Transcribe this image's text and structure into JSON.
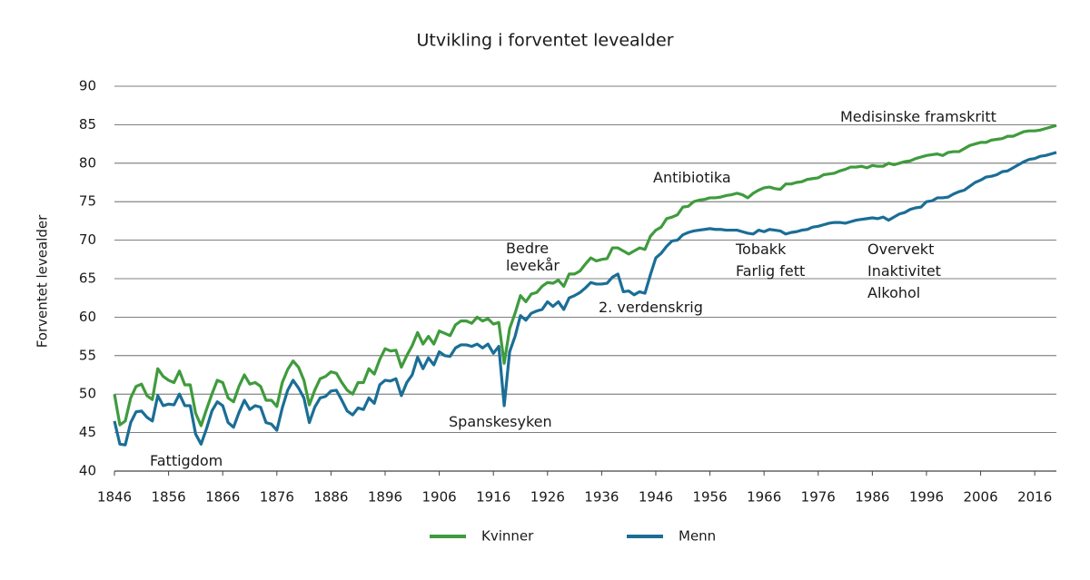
{
  "chart_data": {
    "type": "line",
    "title": "Utvikling i forventet levealder",
    "y_label": "Forventet levealder",
    "xlim": [
      1846,
      2020
    ],
    "ylim": [
      40,
      90
    ],
    "xticks": [
      1846,
      1856,
      1866,
      1876,
      1886,
      1896,
      1906,
      1916,
      1926,
      1936,
      1946,
      1956,
      1966,
      1976,
      1986,
      1996,
      2006,
      2016
    ],
    "yticks": [
      40,
      45,
      50,
      55,
      60,
      65,
      70,
      75,
      80,
      85,
      90
    ],
    "grid": true,
    "legend": "bottom",
    "x": [
      1846,
      1847,
      1848,
      1849,
      1850,
      1851,
      1852,
      1853,
      1854,
      1855,
      1856,
      1857,
      1858,
      1859,
      1860,
      1861,
      1862,
      1863,
      1864,
      1865,
      1866,
      1867,
      1868,
      1869,
      1870,
      1871,
      1872,
      1873,
      1874,
      1875,
      1876,
      1877,
      1878,
      1879,
      1880,
      1881,
      1882,
      1883,
      1884,
      1885,
      1886,
      1887,
      1888,
      1889,
      1890,
      1891,
      1892,
      1893,
      1894,
      1895,
      1896,
      1897,
      1898,
      1899,
      1900,
      1901,
      1902,
      1903,
      1904,
      1905,
      1906,
      1907,
      1908,
      1909,
      1910,
      1911,
      1912,
      1913,
      1914,
      1915,
      1916,
      1917,
      1918,
      1919,
      1920,
      1921,
      1922,
      1923,
      1924,
      1925,
      1926,
      1927,
      1928,
      1929,
      1930,
      1931,
      1932,
      1933,
      1934,
      1935,
      1936,
      1937,
      1938,
      1939,
      1940,
      1941,
      1942,
      1943,
      1944,
      1945,
      1946,
      1947,
      1948,
      1949,
      1950,
      1951,
      1952,
      1953,
      1954,
      1955,
      1956,
      1957,
      1958,
      1959,
      1960,
      1961,
      1962,
      1963,
      1964,
      1965,
      1966,
      1967,
      1968,
      1969,
      1970,
      1971,
      1972,
      1973,
      1974,
      1975,
      1976,
      1977,
      1978,
      1979,
      1980,
      1981,
      1982,
      1983,
      1984,
      1985,
      1986,
      1987,
      1988,
      1989,
      1990,
      1991,
      1992,
      1993,
      1994,
      1995,
      1996,
      1997,
      1998,
      1999,
      2000,
      2001,
      2002,
      2003,
      2004,
      2005,
      2006,
      2007,
      2008,
      2009,
      2010,
      2011,
      2012,
      2013,
      2014,
      2015,
      2016,
      2017,
      2018,
      2019,
      2020
    ],
    "series": [
      {
        "name": "Kvinner",
        "color": "#3f9b3d",
        "values": [
          50,
          46,
          46.5,
          49.5,
          51,
          51.3,
          49.8,
          49.3,
          53.3,
          52.3,
          51.8,
          51.5,
          53,
          51.2,
          51.2,
          47.5,
          45.9,
          48,
          50,
          51.8,
          51.5,
          49.5,
          49,
          51,
          52.5,
          51.3,
          51.5,
          51,
          49.2,
          49.2,
          48.4,
          51.5,
          53.2,
          54.3,
          53.5,
          51.8,
          48.6,
          50.5,
          52,
          52.3,
          52.9,
          52.7,
          51.5,
          50.5,
          50,
          51.5,
          51.5,
          53.3,
          52.6,
          54.5,
          55.9,
          55.6,
          55.7,
          53.5,
          55,
          56.3,
          58,
          56.5,
          57.5,
          56.5,
          58.2,
          57.9,
          57.6,
          59,
          59.5,
          59.5,
          59.2,
          60,
          59.5,
          59.8,
          59.1,
          59.3,
          54,
          58.5,
          60.5,
          62.8,
          62,
          63,
          63.2,
          64,
          64.5,
          64.4,
          64.8,
          64,
          65.6,
          65.6,
          66,
          66.9,
          67.7,
          67.3,
          67.5,
          67.6,
          69,
          69,
          68.6,
          68.2,
          68.6,
          69,
          68.8,
          70.5,
          71.3,
          71.7,
          72.8,
          73,
          73.3,
          74.3,
          74.4,
          75,
          75.2,
          75.3,
          75.5,
          75.5,
          75.6,
          75.8,
          75.9,
          76.1,
          75.9,
          75.5,
          76.1,
          76.5,
          76.8,
          76.9,
          76.7,
          76.6,
          77.3,
          77.3,
          77.5,
          77.6,
          77.9,
          78,
          78.1,
          78.5,
          78.6,
          78.7,
          79,
          79.2,
          79.5,
          79.5,
          79.6,
          79.4,
          79.7,
          79.6,
          79.6,
          80,
          79.8,
          80,
          80.2,
          80.3,
          80.6,
          80.8,
          81,
          81.1,
          81.2,
          81,
          81.4,
          81.5,
          81.5,
          81.9,
          82.3,
          82.5,
          82.7,
          82.7,
          83,
          83.1,
          83.2,
          83.5,
          83.5,
          83.8,
          84.1,
          84.2,
          84.2,
          84.3,
          84.5,
          84.7,
          84.9
        ]
      },
      {
        "name": "Menn",
        "color": "#1a6e96",
        "values": [
          46.5,
          43.5,
          43.4,
          46.3,
          47.7,
          47.8,
          47,
          46.5,
          49.8,
          48.5,
          48.7,
          48.6,
          50,
          48.5,
          48.5,
          44.8,
          43.5,
          45.5,
          47.8,
          49,
          48.5,
          46.3,
          45.7,
          47.6,
          49.2,
          48,
          48.5,
          48.3,
          46.3,
          46.1,
          45.3,
          48.2,
          50.5,
          51.8,
          50.8,
          49.5,
          46.3,
          48.3,
          49.5,
          49.7,
          50.4,
          50.5,
          49.2,
          47.8,
          47.3,
          48.2,
          48,
          49.5,
          48.8,
          51.2,
          51.8,
          51.7,
          52,
          49.8,
          51.5,
          52.5,
          54.8,
          53.3,
          54.7,
          53.8,
          55.5,
          55,
          54.9,
          56,
          56.4,
          56.4,
          56.2,
          56.5,
          56,
          56.5,
          55.3,
          56.2,
          48.5,
          55.5,
          57.5,
          60.2,
          59.6,
          60.5,
          60.8,
          61,
          62,
          61.4,
          62,
          61,
          62.5,
          62.8,
          63.2,
          63.8,
          64.5,
          64.3,
          64.3,
          64.4,
          65.2,
          65.6,
          63.3,
          63.4,
          62.9,
          63.3,
          63.1,
          65.5,
          67.7,
          68.3,
          69.2,
          69.9,
          70,
          70.7,
          71,
          71.2,
          71.3,
          71.4,
          71.5,
          71.4,
          71.4,
          71.3,
          71.3,
          71.3,
          71.1,
          70.9,
          70.8,
          71.3,
          71.1,
          71.4,
          71.3,
          71.2,
          70.8,
          71,
          71.1,
          71.3,
          71.4,
          71.7,
          71.8,
          72,
          72.2,
          72.3,
          72.3,
          72.2,
          72.4,
          72.6,
          72.7,
          72.8,
          72.9,
          72.8,
          73,
          72.6,
          73,
          73.4,
          73.6,
          74,
          74.2,
          74.3,
          75,
          75.1,
          75.5,
          75.5,
          75.6,
          76,
          76.3,
          76.5,
          77,
          77.5,
          77.8,
          78.2,
          78.3,
          78.5,
          78.9,
          79,
          79.4,
          79.8,
          80.2,
          80.5,
          80.6,
          80.9,
          81,
          81.2,
          81.4
        ]
      }
    ],
    "annotations": [
      "Fattigdom",
      "Spanskesyken",
      "Bedre",
      "levekår",
      "2. verdenskrig",
      "Antibiotika",
      "Tobakk",
      "Farlig fett",
      "Overvekt",
      "Inaktivitet",
      "Alkohol",
      "Medisinske framskritt"
    ]
  }
}
